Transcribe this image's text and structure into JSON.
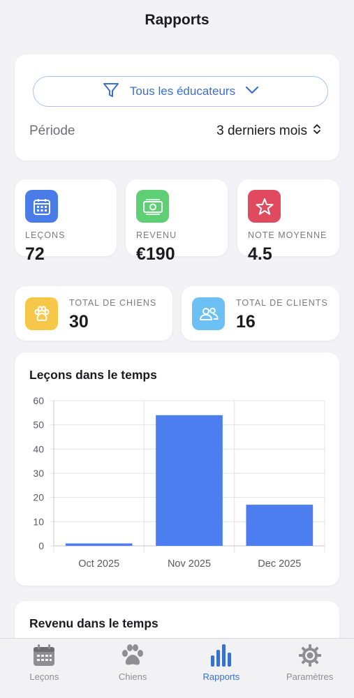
{
  "header": {
    "title": "Rapports"
  },
  "filter": {
    "educator_label": "Tous les éducateurs",
    "period_label": "Période",
    "period_value": "3 derniers mois"
  },
  "stats": {
    "lessons": {
      "label": "LEÇONS",
      "value": "72",
      "color": "#4a7ce8"
    },
    "revenue": {
      "label": "REVENU",
      "value": "€190",
      "color": "#5fcf76"
    },
    "rating": {
      "label": "NOTE MOYENNE",
      "value": "4.5",
      "color": "#e04a5f"
    },
    "dogs": {
      "label": "TOTAL DE CHIENS",
      "value": "30",
      "color": "#f7c74a"
    },
    "clients": {
      "label": "TOTAL DE CLIENTS",
      "value": "16",
      "color": "#6cc1f4"
    }
  },
  "chart_data": {
    "type": "bar",
    "title": "Leçons dans le temps",
    "categories": [
      "Oct 2025",
      "Nov 2025",
      "Dec 2025"
    ],
    "values": [
      1,
      54,
      17
    ],
    "ylim": [
      0,
      60
    ],
    "yticks": [
      0,
      10,
      20,
      30,
      40,
      50,
      60
    ],
    "bar_color": "#4d7ef0",
    "grid": true
  },
  "revenue_chart": {
    "title": "Revenu dans le temps"
  },
  "tabbar": {
    "tabs": [
      {
        "label": "Leçons",
        "icon": "calendar-icon",
        "active": false
      },
      {
        "label": "Chiens",
        "icon": "paw-icon",
        "active": false
      },
      {
        "label": "Rapports",
        "icon": "bar-chart-icon",
        "active": true
      },
      {
        "label": "Paramètres",
        "icon": "gear-icon",
        "active": false
      }
    ]
  }
}
